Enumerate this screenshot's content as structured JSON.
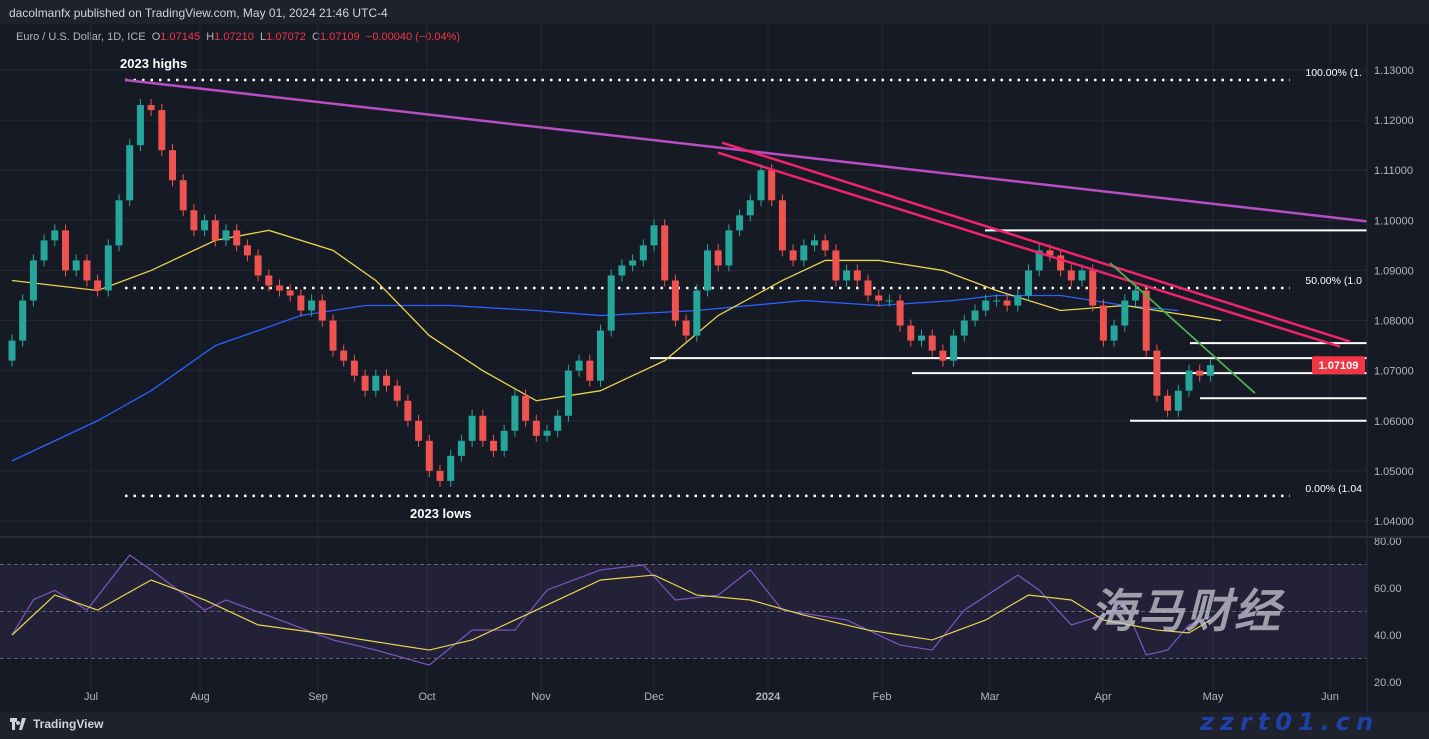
{
  "header": {
    "publisher_line": "dacolmanfx published on TradingView.com, May 01, 2024 21:46 UTC-4"
  },
  "legend": {
    "symbol": "Euro / U.S. Dollar, 1D, ICE",
    "o_label": "O",
    "o": "1.07145",
    "h_label": "H",
    "h": "1.07210",
    "l_label": "L",
    "l": "1.07072",
    "c_label": "C",
    "c": "1.07109",
    "change": "−0.00040 (−0.04%)"
  },
  "footer": {
    "brand": "TradingView"
  },
  "watermark": {
    "cn": "海马财经",
    "site": "zzrt01.cn"
  },
  "colors": {
    "up": "#26a69a",
    "down": "#ef5350",
    "ma50": "#e8d44d",
    "ma200": "#2962ff",
    "longtrend": "#b84dc4",
    "channel": "#f0246a",
    "greentrend": "#4caf50",
    "rsi": "#7e57c2",
    "rsi_ma": "#e8d44d",
    "price_tag": "#f23645"
  },
  "chart_data": [
    {
      "type": "candlestick",
      "title": "Euro / U.S. Dollar, 1D, ICE",
      "ylim": [
        1.037,
        1.135
      ],
      "y_ticks": [
        "1.13000",
        "1.12000",
        "1.11000",
        "1.10000",
        "1.09000",
        "1.08000",
        "1.07000",
        "1.06000",
        "1.05000",
        "1.04000"
      ],
      "x_ticks": [
        "Jul",
        "Aug",
        "Sep",
        "Oct",
        "Nov",
        "Dec",
        "2024",
        "Feb",
        "Mar",
        "Apr",
        "May",
        "Jun"
      ],
      "last_price": "1.07109",
      "close": [
        1.076,
        1.084,
        1.092,
        1.096,
        1.098,
        1.09,
        1.092,
        1.088,
        1.086,
        1.095,
        1.104,
        1.115,
        1.123,
        1.122,
        1.114,
        1.108,
        1.102,
        1.098,
        1.1,
        1.096,
        1.098,
        1.095,
        1.093,
        1.089,
        1.087,
        1.086,
        1.085,
        1.082,
        1.084,
        1.08,
        1.074,
        1.072,
        1.069,
        1.066,
        1.069,
        1.067,
        1.064,
        1.06,
        1.056,
        1.05,
        1.048,
        1.053,
        1.056,
        1.061,
        1.056,
        1.054,
        1.058,
        1.065,
        1.06,
        1.057,
        1.058,
        1.061,
        1.07,
        1.072,
        1.068,
        1.078,
        1.089,
        1.091,
        1.092,
        1.095,
        1.099,
        1.088,
        1.08,
        1.077,
        1.086,
        1.094,
        1.091,
        1.098,
        1.101,
        1.104,
        1.11,
        1.104,
        1.094,
        1.092,
        1.095,
        1.096,
        1.094,
        1.088,
        1.09,
        1.088,
        1.085,
        1.084,
        1.084,
        1.079,
        1.076,
        1.077,
        1.074,
        1.072,
        1.077,
        1.08,
        1.082,
        1.084,
        1.084,
        1.083,
        1.085,
        1.09,
        1.094,
        1.093,
        1.09,
        1.088,
        1.09,
        1.083,
        1.076,
        1.079,
        1.084,
        1.086,
        1.074,
        1.065,
        1.062,
        1.066,
        1.07,
        1.069,
        1.0711
      ],
      "ma50": [
        [
          0,
          1.088
        ],
        [
          8,
          1.086
        ],
        [
          13,
          1.09
        ],
        [
          19,
          1.096
        ],
        [
          24,
          1.098
        ],
        [
          30,
          1.094
        ],
        [
          34,
          1.088
        ],
        [
          39,
          1.077
        ],
        [
          44,
          1.07
        ],
        [
          49,
          1.064
        ],
        [
          55,
          1.066
        ],
        [
          61,
          1.072
        ],
        [
          66,
          1.081
        ],
        [
          72,
          1.088
        ],
        [
          76,
          1.092
        ],
        [
          81,
          1.092
        ],
        [
          87,
          1.09
        ],
        [
          92,
          1.086
        ],
        [
          98,
          1.082
        ],
        [
          104,
          1.083
        ],
        [
          113,
          1.08
        ]
      ],
      "ma200": [
        [
          0,
          1.052
        ],
        [
          8,
          1.06
        ],
        [
          13,
          1.066
        ],
        [
          19,
          1.075
        ],
        [
          27,
          1.081
        ],
        [
          33,
          1.083
        ],
        [
          41,
          1.083
        ],
        [
          49,
          1.082
        ],
        [
          55,
          1.081
        ],
        [
          64,
          1.082
        ],
        [
          74,
          1.084
        ],
        [
          81,
          1.083
        ],
        [
          88,
          1.084
        ],
        [
          92,
          1.085
        ],
        [
          98,
          1.085
        ],
        [
          104,
          1.083
        ],
        [
          109,
          1.082
        ]
      ],
      "levels": [
        {
          "price": 1.128,
          "style": "dotted",
          "label": "100.00% (1."
        },
        {
          "price": 1.0865,
          "style": "dotted",
          "label": "50.00% (1.0"
        },
        {
          "price": 1.045,
          "style": "dotted",
          "label": "0.00% (1.04"
        },
        {
          "price": 1.098,
          "style": "solid"
        },
        {
          "price": 1.0755,
          "style": "solid"
        },
        {
          "price": 1.0725,
          "style": "solid"
        },
        {
          "price": 1.0695,
          "style": "solid"
        },
        {
          "price": 1.0645,
          "style": "solid"
        },
        {
          "price": 1.06,
          "style": "solid"
        }
      ],
      "annotations": [
        "2023 highs",
        "2023 lows"
      ]
    },
    {
      "type": "line",
      "title": "RSI",
      "ylim": [
        15,
        82
      ],
      "y_ticks": [
        "80.00",
        "60.00",
        "40.00",
        "20.00"
      ],
      "bands": [
        30,
        50,
        70
      ],
      "rsi": [
        [
          0,
          40
        ],
        [
          2,
          55
        ],
        [
          4,
          59
        ],
        [
          7,
          50.6
        ],
        [
          11,
          74
        ],
        [
          13,
          67.7
        ],
        [
          18,
          50.6
        ],
        [
          20,
          54.9
        ],
        [
          25,
          46.4
        ],
        [
          30,
          37.9
        ],
        [
          34,
          33.6
        ],
        [
          39,
          27.2
        ],
        [
          43,
          42.1
        ],
        [
          47,
          42.1
        ],
        [
          50,
          59.1
        ],
        [
          55,
          67.7
        ],
        [
          59,
          69.8
        ],
        [
          62,
          54.9
        ],
        [
          66,
          57
        ],
        [
          69,
          67.7
        ],
        [
          72,
          50.6
        ],
        [
          78,
          46.4
        ],
        [
          83,
          35.7
        ],
        [
          86,
          33.6
        ],
        [
          89,
          50.6
        ],
        [
          94,
          65.5
        ],
        [
          96,
          59.1
        ],
        [
          99,
          44.3
        ],
        [
          102,
          48.5
        ],
        [
          104,
          52.8
        ],
        [
          106,
          31.5
        ],
        [
          108,
          33.6
        ],
        [
          110,
          44.3
        ],
        [
          112,
          47.7
        ]
      ],
      "rsi_ma": [
        [
          0,
          40
        ],
        [
          4,
          57
        ],
        [
          8,
          50.6
        ],
        [
          13,
          63.4
        ],
        [
          18,
          54.9
        ],
        [
          23,
          44.3
        ],
        [
          30,
          40
        ],
        [
          36,
          35.7
        ],
        [
          39,
          33.6
        ],
        [
          43,
          37.9
        ],
        [
          48,
          48.5
        ],
        [
          55,
          63.4
        ],
        [
          60,
          65.5
        ],
        [
          64,
          57
        ],
        [
          69,
          54.9
        ],
        [
          74,
          48.5
        ],
        [
          80,
          42.1
        ],
        [
          86,
          37.9
        ],
        [
          91,
          46.4
        ],
        [
          95,
          57
        ],
        [
          99,
          54.9
        ],
        [
          102,
          46.4
        ],
        [
          107,
          42.1
        ],
        [
          110,
          40.9
        ],
        [
          112,
          46.4
        ]
      ]
    }
  ]
}
